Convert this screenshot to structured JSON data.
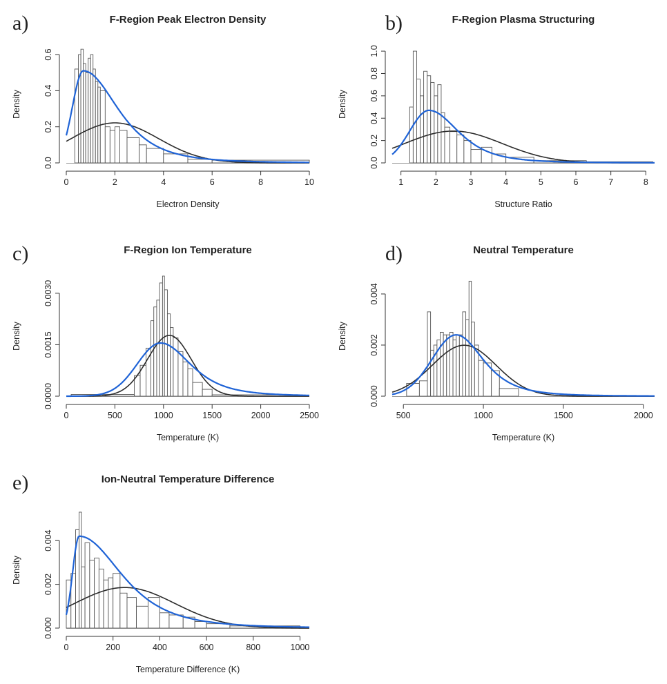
{
  "colors": {
    "normal_fit": "#2b2b2b",
    "skewed_fit": "#1f63d6",
    "bar_stroke": "#555555",
    "bar_fill": "#ffffff"
  },
  "chart_data": [
    {
      "id": "a",
      "panel_label": "a)",
      "type": "bar",
      "title": "F-Region Peak Electron Density",
      "xlabel": "Electron Density",
      "ylabel": "Density",
      "xlim": [
        0,
        10
      ],
      "ylim": [
        0,
        0.65
      ],
      "xticks": [
        "0",
        "2",
        "4",
        "6",
        "8",
        "10"
      ],
      "yticks": [
        "0.0",
        "0.2",
        "0.4",
        "0.6"
      ],
      "bins": [
        [
          0.35,
          0.5,
          0.52
        ],
        [
          0.5,
          0.6,
          0.6
        ],
        [
          0.6,
          0.7,
          0.63
        ],
        [
          0.7,
          0.8,
          0.55
        ],
        [
          0.8,
          0.9,
          0.5
        ],
        [
          0.9,
          1.0,
          0.58
        ],
        [
          1.0,
          1.1,
          0.6
        ],
        [
          1.1,
          1.2,
          0.52
        ],
        [
          1.2,
          1.3,
          0.45
        ],
        [
          1.3,
          1.4,
          0.42
        ],
        [
          1.4,
          1.6,
          0.4
        ],
        [
          1.6,
          1.8,
          0.2
        ],
        [
          1.8,
          2.0,
          0.18
        ],
        [
          2.0,
          2.2,
          0.2
        ],
        [
          2.2,
          2.5,
          0.18
        ],
        [
          2.5,
          3.0,
          0.14
        ],
        [
          3.0,
          3.3,
          0.1
        ],
        [
          3.3,
          4.0,
          0.08
        ],
        [
          4.0,
          5.0,
          0.05
        ],
        [
          5.0,
          6.0,
          0.02
        ],
        [
          6.0,
          10.0,
          0.015
        ]
      ],
      "series": [
        {
          "kind": "normal",
          "mean": 2.0,
          "sd": 1.8,
          "scale": 1.0
        },
        {
          "kind": "skewed",
          "mode": 0.7,
          "peak": 0.51,
          "left": 0.45,
          "right": 1.5,
          "start": 0.0
        }
      ]
    },
    {
      "id": "b",
      "panel_label": "b)",
      "type": "bar",
      "title": "F-Region Plasma Structuring",
      "xlabel": "Structure Ratio",
      "ylabel": "Density",
      "xlim": [
        0.75,
        8.25
      ],
      "ylim": [
        0,
        1.05
      ],
      "xticks": [
        "1",
        "2",
        "3",
        "4",
        "5",
        "6",
        "7",
        "8"
      ],
      "yticks": [
        "0.0",
        "0.2",
        "0.4",
        "0.6",
        "0.8",
        "1.0"
      ],
      "bins": [
        [
          1.25,
          1.35,
          0.5
        ],
        [
          1.35,
          1.45,
          1.0
        ],
        [
          1.45,
          1.55,
          0.75
        ],
        [
          1.55,
          1.65,
          0.6
        ],
        [
          1.65,
          1.75,
          0.82
        ],
        [
          1.75,
          1.85,
          0.78
        ],
        [
          1.85,
          1.95,
          0.72
        ],
        [
          1.95,
          2.05,
          0.6
        ],
        [
          2.05,
          2.15,
          0.7
        ],
        [
          2.15,
          2.25,
          0.45
        ],
        [
          2.25,
          2.4,
          0.32
        ],
        [
          2.4,
          2.6,
          0.28
        ],
        [
          2.6,
          2.8,
          0.25
        ],
        [
          2.8,
          3.0,
          0.2
        ],
        [
          3.0,
          3.3,
          0.12
        ],
        [
          3.3,
          3.6,
          0.14
        ],
        [
          3.6,
          4.0,
          0.08
        ],
        [
          4.0,
          4.8,
          0.05
        ],
        [
          4.8,
          6.3,
          0.02
        ],
        [
          6.3,
          8.2,
          0.01
        ]
      ],
      "series": [
        {
          "kind": "normal",
          "mean": 2.5,
          "sd": 1.4,
          "scale": 1.0
        },
        {
          "kind": "skewed",
          "mode": 1.8,
          "peak": 0.47,
          "left": 0.55,
          "right": 0.9,
          "start": 0.75
        }
      ]
    },
    {
      "id": "c",
      "panel_label": "c)",
      "type": "bar",
      "title": "F-Region Ion Temperature",
      "xlabel": "Temperature (K)",
      "ylabel": "Density",
      "xlim": [
        0,
        2500
      ],
      "ylim": [
        0,
        0.0035
      ],
      "xticks": [
        "0",
        "500",
        "1000",
        "1500",
        "2000",
        "2500"
      ],
      "yticks": [
        "0.0000",
        "0.0015",
        "0.0030"
      ],
      "bins": [
        [
          50,
          700,
          5e-05
        ],
        [
          700,
          760,
          0.0006
        ],
        [
          760,
          820,
          0.0009
        ],
        [
          820,
          870,
          0.0014
        ],
        [
          870,
          900,
          0.0022
        ],
        [
          900,
          930,
          0.0026
        ],
        [
          930,
          960,
          0.0028
        ],
        [
          960,
          990,
          0.0033
        ],
        [
          990,
          1010,
          0.0035
        ],
        [
          1010,
          1040,
          0.0031
        ],
        [
          1040,
          1070,
          0.0024
        ],
        [
          1070,
          1100,
          0.002
        ],
        [
          1100,
          1150,
          0.0017
        ],
        [
          1150,
          1200,
          0.0013
        ],
        [
          1200,
          1250,
          0.001
        ],
        [
          1250,
          1300,
          0.0008
        ],
        [
          1300,
          1400,
          0.0004
        ],
        [
          1400,
          1500,
          0.0002
        ],
        [
          1500,
          2400,
          4e-05
        ]
      ],
      "series": [
        {
          "kind": "normal",
          "mean": 1060,
          "sd": 225,
          "scale": 1.0
        },
        {
          "kind": "skewed",
          "mode": 970,
          "peak": 0.00155,
          "left": 240,
          "right": 330,
          "start": 0
        }
      ]
    },
    {
      "id": "d",
      "panel_label": "d)",
      "type": "bar",
      "title": "Neutral Temperature",
      "xlabel": "Temperature (K)",
      "ylabel": "Density",
      "xlim": [
        430,
        2070
      ],
      "ylim": [
        0,
        0.0047
      ],
      "xticks": [
        "500",
        "1000",
        "1500",
        "2000"
      ],
      "yticks": [
        "0.000",
        "0.002",
        "0.004"
      ],
      "bins": [
        [
          520,
          600,
          0.0005
        ],
        [
          600,
          650,
          0.0006
        ],
        [
          650,
          670,
          0.0033
        ],
        [
          670,
          690,
          0.0018
        ],
        [
          690,
          710,
          0.002
        ],
        [
          710,
          730,
          0.0022
        ],
        [
          730,
          750,
          0.0025
        ],
        [
          750,
          770,
          0.0024
        ],
        [
          770,
          790,
          0.0024
        ],
        [
          790,
          810,
          0.0025
        ],
        [
          810,
          830,
          0.0022
        ],
        [
          830,
          850,
          0.0024
        ],
        [
          850,
          870,
          0.0024
        ],
        [
          870,
          890,
          0.0033
        ],
        [
          890,
          910,
          0.003
        ],
        [
          910,
          925,
          0.0045
        ],
        [
          925,
          945,
          0.0029
        ],
        [
          945,
          970,
          0.002
        ],
        [
          970,
          1000,
          0.0014
        ],
        [
          1000,
          1050,
          0.0013
        ],
        [
          1050,
          1100,
          0.001
        ],
        [
          1100,
          1220,
          0.0003
        ]
      ],
      "series": [
        {
          "kind": "normal",
          "mean": 880,
          "sd": 200,
          "scale": 1.0
        },
        {
          "kind": "skewed",
          "mode": 830,
          "peak": 0.0024,
          "left": 150,
          "right": 180,
          "start": 430
        }
      ]
    },
    {
      "id": "e",
      "panel_label": "e)",
      "type": "bar",
      "title": "Ion-Neutral Temperature Difference",
      "xlabel": "Temperature Difference (K)",
      "ylabel": "Density",
      "xlim": [
        0,
        1040
      ],
      "ylim": [
        0,
        0.0053
      ],
      "xticks": [
        "0",
        "200",
        "400",
        "600",
        "800",
        "1000"
      ],
      "yticks": [
        "0.000",
        "0.002",
        "0.004"
      ],
      "bins": [
        [
          0,
          20,
          0.0022
        ],
        [
          20,
          40,
          0.0025
        ],
        [
          40,
          55,
          0.0045
        ],
        [
          55,
          65,
          0.0053
        ],
        [
          65,
          80,
          0.0028
        ],
        [
          80,
          100,
          0.0039
        ],
        [
          100,
          120,
          0.0031
        ],
        [
          120,
          140,
          0.0032
        ],
        [
          140,
          160,
          0.0027
        ],
        [
          160,
          180,
          0.0022
        ],
        [
          180,
          200,
          0.0023
        ],
        [
          200,
          230,
          0.0025
        ],
        [
          230,
          260,
          0.0016
        ],
        [
          260,
          300,
          0.0014
        ],
        [
          300,
          350,
          0.001
        ],
        [
          350,
          400,
          0.0014
        ],
        [
          400,
          440,
          0.0007
        ],
        [
          440,
          500,
          0.0006
        ],
        [
          500,
          550,
          0.0005
        ],
        [
          550,
          600,
          0.0003
        ],
        [
          600,
          700,
          0.0002
        ],
        [
          700,
          1000,
          0.0001
        ]
      ],
      "series": [
        {
          "kind": "normal",
          "mean": 250,
          "sd": 215,
          "scale": 1.0
        },
        {
          "kind": "skewed",
          "mode": 55,
          "peak": 0.0042,
          "left": 28,
          "right": 190,
          "start": 0
        }
      ]
    }
  ]
}
